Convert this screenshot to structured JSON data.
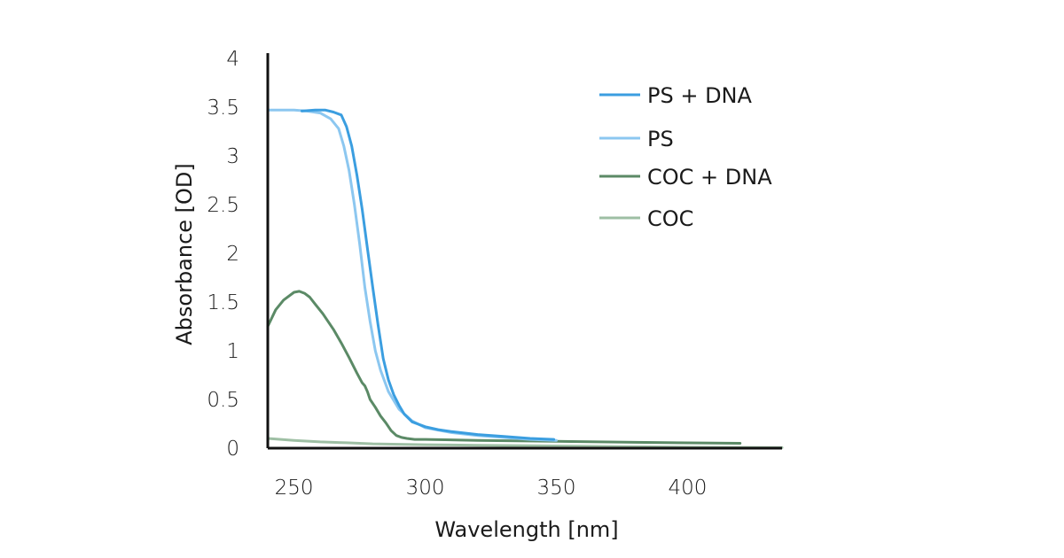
{
  "chart_data": {
    "type": "line",
    "title": "",
    "xlabel": "Wavelength [nm]",
    "ylabel": "Absorbance [OD]",
    "xlim": [
      240,
      436
    ],
    "ylim": [
      0,
      4
    ],
    "xticks": [
      250,
      300,
      350,
      400
    ],
    "yticks": [
      0,
      0.5,
      1,
      1.5,
      2,
      2.5,
      3,
      3.5,
      4
    ],
    "ytick_labels": [
      "0",
      "0.5",
      "1",
      "1.5",
      "2",
      "2.5",
      "3",
      "3.5",
      "4"
    ],
    "grid": false,
    "legend_position": "top-right",
    "series": [
      {
        "name": "PS + DNA",
        "color": "#3b9ee0",
        "x": [
          253,
          258,
          262,
          265,
          268,
          270,
          272,
          274,
          276,
          278,
          280,
          282,
          284,
          286,
          288,
          290,
          292,
          295,
          300,
          305,
          310,
          320,
          330,
          340,
          349
        ],
        "y": [
          3.46,
          3.47,
          3.47,
          3.45,
          3.42,
          3.3,
          3.1,
          2.8,
          2.45,
          2.05,
          1.65,
          1.27,
          0.92,
          0.7,
          0.55,
          0.44,
          0.35,
          0.27,
          0.22,
          0.19,
          0.17,
          0.14,
          0.12,
          0.1,
          0.09
        ]
      },
      {
        "name": "PS",
        "color": "#8cc7f0",
        "x": [
          240,
          245,
          250,
          255,
          260,
          264,
          267,
          269,
          271,
          273,
          275,
          277,
          279,
          281,
          283,
          286,
          290,
          295,
          300,
          310,
          320,
          330,
          340,
          350
        ],
        "y": [
          3.47,
          3.47,
          3.47,
          3.46,
          3.44,
          3.38,
          3.28,
          3.1,
          2.85,
          2.5,
          2.1,
          1.65,
          1.3,
          1.0,
          0.8,
          0.58,
          0.4,
          0.28,
          0.21,
          0.16,
          0.13,
          0.11,
          0.09,
          0.08
        ]
      },
      {
        "name": "COC + DNA",
        "color": "#5b8a66",
        "x": [
          240,
          243,
          246,
          250,
          252,
          254,
          256,
          258,
          261,
          265,
          268,
          271,
          274,
          276,
          277,
          278,
          279,
          281,
          283,
          285,
          287,
          289,
          291,
          293,
          296,
          300,
          320,
          350,
          380,
          420
        ],
        "y": [
          1.25,
          1.42,
          1.52,
          1.6,
          1.61,
          1.59,
          1.55,
          1.48,
          1.38,
          1.22,
          1.08,
          0.93,
          0.77,
          0.67,
          0.64,
          0.58,
          0.5,
          0.42,
          0.33,
          0.26,
          0.18,
          0.13,
          0.11,
          0.1,
          0.09,
          0.09,
          0.08,
          0.07,
          0.06,
          0.05
        ]
      },
      {
        "name": "COC",
        "color": "#9ebfa4",
        "x": [
          240,
          250,
          260,
          270,
          280,
          290,
          300,
          320,
          340,
          360,
          380,
          400,
          436
        ],
        "y": [
          0.1,
          0.08,
          0.065,
          0.055,
          0.045,
          0.04,
          0.035,
          0.03,
          0.025,
          0.02,
          0.015,
          0.01,
          0.005
        ]
      }
    ]
  }
}
